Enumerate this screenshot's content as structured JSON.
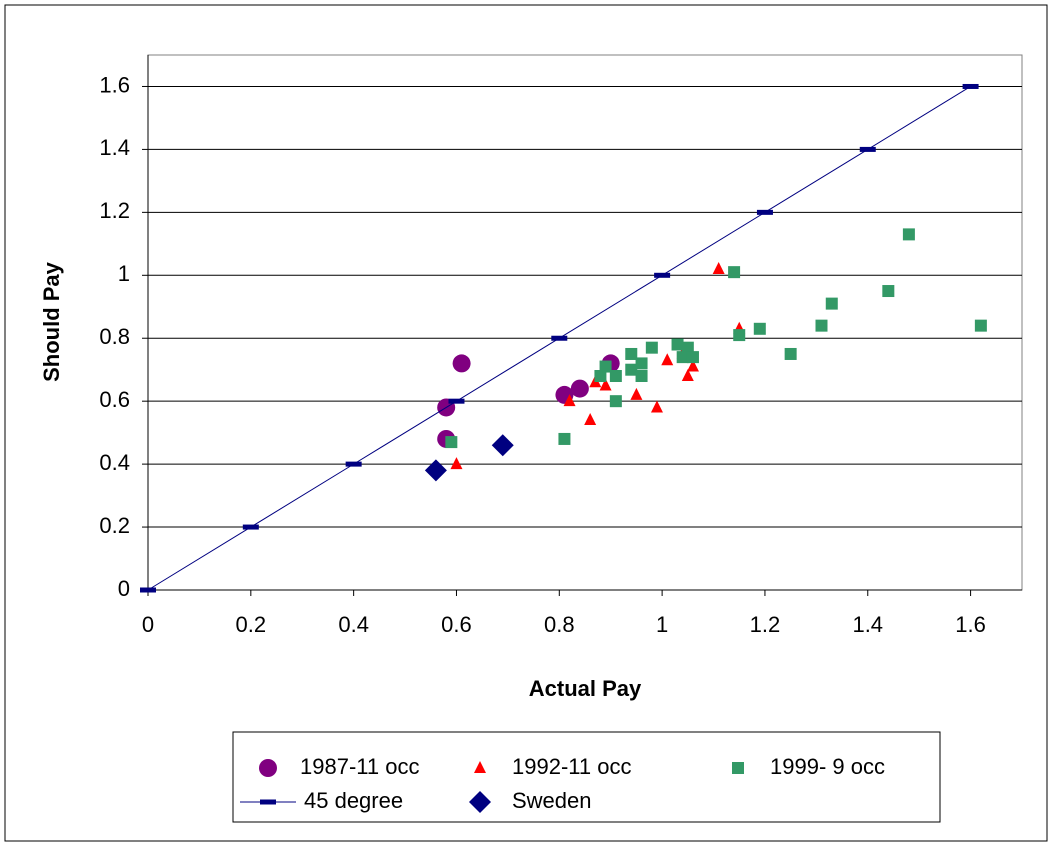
{
  "chart_data": {
    "type": "scatter",
    "x_label": "Actual Pay",
    "y_label": "Should Pay",
    "xlim": [
      0,
      1.7
    ],
    "ylim": [
      0,
      1.7
    ],
    "xticks": [
      0,
      0.2,
      0.4,
      0.6,
      0.8,
      1,
      1.2,
      1.4,
      1.6
    ],
    "yticks": [
      0,
      0.2,
      0.4,
      0.6,
      0.8,
      1,
      1.2,
      1.4,
      1.6
    ],
    "grid": true,
    "series": [
      {
        "name": "1987-11 occ",
        "color": "#800080",
        "marker": "circle",
        "x": [
          0.58,
          0.58,
          0.61,
          0.81,
          0.84,
          0.9
        ],
        "y": [
          0.58,
          0.48,
          0.72,
          0.62,
          0.64,
          0.72
        ]
      },
      {
        "name": "1992-11 occ",
        "color": "#ff0000",
        "marker": "triangle",
        "x": [
          0.6,
          0.82,
          0.86,
          0.87,
          0.89,
          0.95,
          0.99,
          1.01,
          1.04,
          1.05,
          1.06,
          1.11,
          1.15
        ],
        "y": [
          0.4,
          0.6,
          0.54,
          0.66,
          0.65,
          0.62,
          0.58,
          0.73,
          0.75,
          0.68,
          0.71,
          1.02,
          0.83
        ]
      },
      {
        "name": "1999- 9 occ",
        "color": "#339966",
        "marker": "square",
        "x": [
          0.59,
          0.81,
          0.88,
          0.89,
          0.91,
          0.91,
          0.94,
          0.94,
          0.96,
          0.96,
          0.98,
          1.03,
          1.04,
          1.05,
          1.06,
          1.14,
          1.15,
          1.19,
          1.25,
          1.31,
          1.33,
          1.44,
          1.48,
          1.62
        ],
        "y": [
          0.47,
          0.48,
          0.68,
          0.71,
          0.6,
          0.68,
          0.75,
          0.7,
          0.68,
          0.72,
          0.77,
          0.78,
          0.74,
          0.77,
          0.74,
          1.01,
          0.81,
          0.83,
          0.75,
          0.84,
          0.91,
          0.95,
          1.13,
          0.84
        ]
      },
      {
        "name": "45 degree",
        "color": "#000080",
        "marker": "dash",
        "line": true,
        "x": [
          0,
          0.2,
          0.4,
          0.6,
          0.8,
          1,
          1.2,
          1.4,
          1.6
        ],
        "y": [
          0,
          0.2,
          0.4,
          0.6,
          0.8,
          1,
          1.2,
          1.4,
          1.6
        ]
      },
      {
        "name": "Sweden",
        "color": "#000080",
        "marker": "diamond",
        "x": [
          0.56,
          0.69
        ],
        "y": [
          0.38,
          0.46
        ]
      }
    ]
  }
}
